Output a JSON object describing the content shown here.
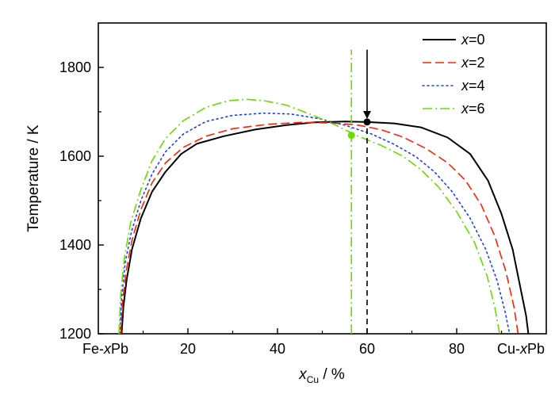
{
  "chart_data": {
    "type": "line",
    "xlabel": {
      "var": "x",
      "sub": "Cu",
      "unit": " / %"
    },
    "ylabel": "Temperature / K",
    "xlim": [
      0,
      100
    ],
    "ylim": [
      1200,
      1900
    ],
    "xticks": [
      20,
      40,
      60,
      80
    ],
    "yticks": [
      1200,
      1400,
      1600,
      1800
    ],
    "x_end_labels": {
      "left": "Fe-xPb",
      "right": "Cu-xPb"
    },
    "legend_position": "top-right",
    "series": [
      {
        "name": "x=0",
        "label_parts": {
          "var": "x",
          "rest": "=0"
        },
        "color": "#000000",
        "dash": "solid",
        "points": [
          [
            5.2,
            1200
          ],
          [
            5.6,
            1260
          ],
          [
            6.3,
            1320
          ],
          [
            7.5,
            1390
          ],
          [
            9.5,
            1460
          ],
          [
            12,
            1520
          ],
          [
            15,
            1565
          ],
          [
            18.5,
            1605
          ],
          [
            22,
            1628
          ],
          [
            28,
            1645
          ],
          [
            35,
            1660
          ],
          [
            42,
            1670
          ],
          [
            48,
            1676
          ],
          [
            55,
            1678
          ],
          [
            60,
            1677
          ],
          [
            66,
            1674
          ],
          [
            72,
            1665
          ],
          [
            78,
            1642
          ],
          [
            83,
            1605
          ],
          [
            87,
            1545
          ],
          [
            90,
            1470
          ],
          [
            92.5,
            1390
          ],
          [
            94.3,
            1300
          ],
          [
            95.5,
            1240
          ],
          [
            96,
            1200
          ]
        ]
      },
      {
        "name": "x=2",
        "label_parts": {
          "var": "x",
          "rest": "=2"
        },
        "color": "#ff2200",
        "dash": "11,5",
        "points": [
          [
            5,
            1200
          ],
          [
            5.4,
            1270
          ],
          [
            6.2,
            1340
          ],
          [
            7.5,
            1410
          ],
          [
            9.5,
            1480
          ],
          [
            12,
            1540
          ],
          [
            15,
            1585
          ],
          [
            19,
            1620
          ],
          [
            24,
            1645
          ],
          [
            30,
            1662
          ],
          [
            38,
            1672
          ],
          [
            45,
            1676
          ],
          [
            52,
            1675
          ],
          [
            58,
            1670
          ],
          [
            63,
            1660
          ],
          [
            68,
            1643
          ],
          [
            73,
            1618
          ],
          [
            78,
            1585
          ],
          [
            82,
            1545
          ],
          [
            85.5,
            1490
          ],
          [
            88.5,
            1420
          ],
          [
            91,
            1340
          ],
          [
            92.8,
            1260
          ],
          [
            93.7,
            1200
          ]
        ]
      },
      {
        "name": "x=4",
        "label_parts": {
          "var": "x",
          "rest": "=4"
        },
        "color": "#1a3cff",
        "dash": "2,4",
        "points": [
          [
            4.8,
            1200
          ],
          [
            5.2,
            1280
          ],
          [
            6,
            1360
          ],
          [
            7.4,
            1430
          ],
          [
            9.5,
            1500
          ],
          [
            12,
            1560
          ],
          [
            15,
            1610
          ],
          [
            19,
            1650
          ],
          [
            24,
            1678
          ],
          [
            30,
            1692
          ],
          [
            37,
            1697
          ],
          [
            43,
            1695
          ],
          [
            49,
            1685
          ],
          [
            55,
            1670
          ],
          [
            61,
            1650
          ],
          [
            66,
            1627
          ],
          [
            71,
            1598
          ],
          [
            75,
            1565
          ],
          [
            79,
            1520
          ],
          [
            83,
            1460
          ],
          [
            86.5,
            1390
          ],
          [
            89,
            1320
          ],
          [
            90.8,
            1250
          ],
          [
            91.8,
            1200
          ]
        ]
      },
      {
        "name": "x=6",
        "label_parts": {
          "var": "x",
          "rest": "=6"
        },
        "color": "#66dd00",
        "dash": "12,4,2,4",
        "points": [
          [
            4.6,
            1200
          ],
          [
            5,
            1290
          ],
          [
            5.8,
            1370
          ],
          [
            7.2,
            1450
          ],
          [
            9.5,
            1525
          ],
          [
            12,
            1590
          ],
          [
            15,
            1640
          ],
          [
            19,
            1680
          ],
          [
            24,
            1710
          ],
          [
            29,
            1725
          ],
          [
            33,
            1728
          ],
          [
            37,
            1725
          ],
          [
            42,
            1715
          ],
          [
            48,
            1692
          ],
          [
            53,
            1670
          ],
          [
            58,
            1645
          ],
          [
            63,
            1625
          ],
          [
            68,
            1600
          ],
          [
            72,
            1570
          ],
          [
            76,
            1530
          ],
          [
            80,
            1475
          ],
          [
            84,
            1405
          ],
          [
            86.8,
            1330
          ],
          [
            88.5,
            1260
          ],
          [
            89.6,
            1200
          ]
        ]
      }
    ],
    "markers": [
      {
        "x": 60,
        "y": 1677,
        "color": "#000000"
      },
      {
        "x": 56.5,
        "y": 1647,
        "color": "#66dd00"
      }
    ],
    "vlines": [
      {
        "x": 60,
        "y_from": 1200,
        "y_to": 1677,
        "color": "#000000",
        "dash": "7,5"
      },
      {
        "x": 56.5,
        "y_from": 1200,
        "y_to": 1840,
        "color": "#66dd00",
        "dash": "12,4,2,4"
      }
    ],
    "arrows": [
      {
        "x": 60,
        "y_from": 1840,
        "y_to": 1684,
        "color": "#000000"
      }
    ]
  }
}
